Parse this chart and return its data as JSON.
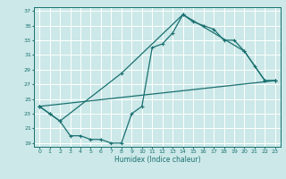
{
  "xlabel": "Humidex (Indice chaleur)",
  "bg_color": "#cce8e8",
  "grid_color": "#ffffff",
  "line_color": "#1a7070",
  "xlim": [
    -0.5,
    23.5
  ],
  "ylim": [
    18.5,
    37.5
  ],
  "yticks": [
    19,
    21,
    23,
    25,
    27,
    29,
    31,
    33,
    35,
    37
  ],
  "xticks": [
    0,
    1,
    2,
    3,
    4,
    5,
    6,
    7,
    8,
    9,
    10,
    11,
    12,
    13,
    14,
    15,
    16,
    17,
    18,
    19,
    20,
    21,
    22,
    23
  ],
  "line1_x": [
    0,
    1,
    2,
    3,
    4,
    5,
    6,
    7,
    8,
    9,
    10,
    11,
    12,
    13,
    14,
    15,
    16,
    17,
    18,
    19,
    20,
    21,
    22,
    23
  ],
  "line1_y": [
    24,
    23,
    22,
    20,
    20,
    19.5,
    19.5,
    19,
    19,
    23,
    24,
    32,
    32.5,
    34,
    36.5,
    35.5,
    35,
    34.5,
    33,
    33,
    31.5,
    29.5,
    27.5,
    27.5
  ],
  "line2_x": [
    0,
    1,
    2,
    8,
    14,
    20,
    22,
    23
  ],
  "line2_y": [
    24,
    23,
    22,
    28.5,
    36.5,
    31.5,
    27.5,
    27.5
  ],
  "line3_x": [
    0,
    23
  ],
  "line3_y": [
    24,
    27.5
  ]
}
